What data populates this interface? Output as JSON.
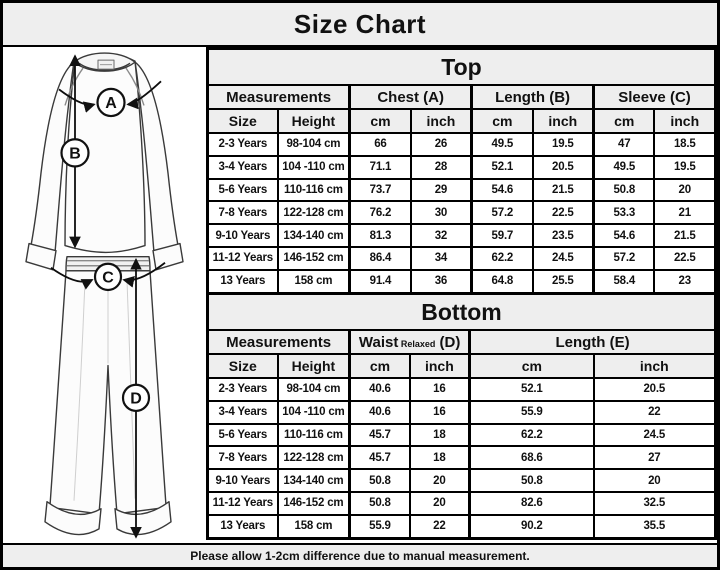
{
  "header": {
    "title": "Size Chart"
  },
  "footer": {
    "note": "Please allow 1-2cm difference due to manual measurement."
  },
  "diagram": {
    "description": "pajama set line drawing with measurement markers",
    "labels": [
      "A",
      "B",
      "C",
      "D"
    ]
  },
  "tables": {
    "top": {
      "title": "Top",
      "group_headers": [
        {
          "text": "Measurements"
        },
        {
          "text": "Chest (A)"
        },
        {
          "text": "Length (B)"
        },
        {
          "text": "Sleeve (C)"
        }
      ],
      "sub_headers": [
        "Size",
        "Height",
        "cm",
        "inch",
        "cm",
        "inch",
        "cm",
        "inch"
      ],
      "rows": [
        [
          "2-3 Years",
          "98-104 cm",
          "66",
          "26",
          "49.5",
          "19.5",
          "47",
          "18.5"
        ],
        [
          "3-4 Years",
          "104 -110 cm",
          "71.1",
          "28",
          "52.1",
          "20.5",
          "49.5",
          "19.5"
        ],
        [
          "5-6 Years",
          "110-116 cm",
          "73.7",
          "29",
          "54.6",
          "21.5",
          "50.8",
          "20"
        ],
        [
          "7-8 Years",
          "122-128 cm",
          "76.2",
          "30",
          "57.2",
          "22.5",
          "53.3",
          "21"
        ],
        [
          "9-10 Years",
          "134-140 cm",
          "81.3",
          "32",
          "59.7",
          "23.5",
          "54.6",
          "21.5"
        ],
        [
          "11-12 Years",
          "146-152 cm",
          "86.4",
          "34",
          "62.2",
          "24.5",
          "57.2",
          "22.5"
        ],
        [
          "13 Years",
          "158 cm",
          "91.4",
          "36",
          "64.8",
          "25.5",
          "58.4",
          "23"
        ]
      ]
    },
    "bottom": {
      "title": "Bottom",
      "group_headers": [
        {
          "text": "Measurements"
        },
        {
          "text": "Waist",
          "small": "Relaxed",
          "suffix": "(D)"
        },
        {
          "text": "Length (E)"
        }
      ],
      "sub_headers": [
        "Size",
        "Height",
        "cm",
        "inch",
        "cm",
        "inch"
      ],
      "rows": [
        [
          "2-3 Years",
          "98-104 cm",
          "40.6",
          "16",
          "52.1",
          "20.5"
        ],
        [
          "3-4 Years",
          "104 -110 cm",
          "40.6",
          "16",
          "55.9",
          "22"
        ],
        [
          "5-6 Years",
          "110-116 cm",
          "45.7",
          "18",
          "62.2",
          "24.5"
        ],
        [
          "7-8 Years",
          "122-128 cm",
          "45.7",
          "18",
          "68.6",
          "27"
        ],
        [
          "9-10 Years",
          "134-140 cm",
          "50.8",
          "20",
          "50.8",
          "20"
        ],
        [
          "11-12 Years",
          "146-152 cm",
          "50.8",
          "20",
          "82.6",
          "32.5"
        ],
        [
          "13 Years",
          "158 cm",
          "55.9",
          "22",
          "90.2",
          "35.5"
        ]
      ]
    }
  }
}
